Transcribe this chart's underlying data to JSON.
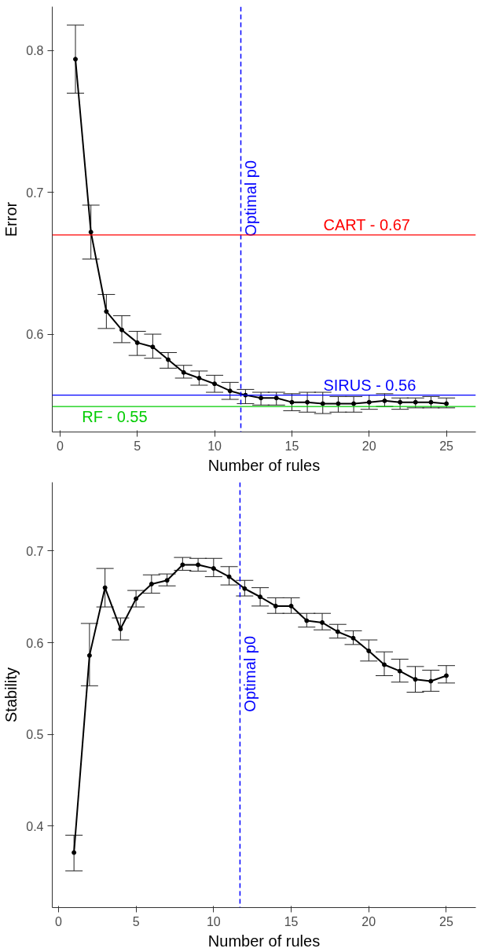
{
  "chart_data": [
    {
      "type": "line",
      "xlabel": "Number of rules",
      "ylabel": "Error",
      "x": [
        1,
        2,
        3,
        4,
        5,
        6,
        7,
        8,
        9,
        10,
        11,
        12,
        13,
        14,
        15,
        16,
        17,
        18,
        19,
        20,
        21,
        22,
        23,
        24,
        25
      ],
      "series": [
        {
          "color": "#000000",
          "values": [
            0.794,
            0.672,
            0.616,
            0.603,
            0.594,
            0.591,
            0.582,
            0.573,
            0.569,
            0.565,
            0.56,
            0.557,
            0.555,
            0.555,
            0.552,
            0.552,
            0.551,
            0.551,
            0.551,
            0.552,
            0.553,
            0.552,
            0.552,
            0.552,
            0.551
          ],
          "errors": [
            [
              0.77,
              0.818
            ],
            [
              0.653,
              0.691
            ],
            [
              0.604,
              0.628
            ],
            [
              0.594,
              0.613
            ],
            [
              0.585,
              0.602
            ],
            [
              0.583,
              0.6
            ],
            [
              0.576,
              0.587
            ],
            [
              0.569,
              0.578
            ],
            [
              0.564,
              0.574
            ],
            [
              0.559,
              0.571
            ],
            [
              0.554,
              0.566
            ],
            [
              0.551,
              0.561
            ],
            [
              0.55,
              0.559
            ],
            [
              0.55,
              0.559
            ],
            [
              0.546,
              0.558
            ],
            [
              0.545,
              0.559
            ],
            [
              0.544,
              0.559
            ],
            [
              0.545,
              0.556
            ],
            [
              0.545,
              0.556
            ],
            [
              0.547,
              0.557
            ],
            [
              0.549,
              0.558
            ],
            [
              0.547,
              0.555
            ],
            [
              0.548,
              0.555
            ],
            [
              0.548,
              0.556
            ],
            [
              0.548,
              0.555
            ]
          ]
        }
      ],
      "xlim": [
        -0.5,
        26.9
      ],
      "ylim": [
        0.531,
        0.831
      ],
      "xticks": [
        0,
        5,
        10,
        15,
        20,
        25
      ],
      "yticks": [
        0.6,
        0.7,
        0.8
      ],
      "ref_lines": [
        {
          "axis": "x",
          "value": 11.7,
          "label": "Optimal p0",
          "color": "#0000ff",
          "line_style": "dashed"
        },
        {
          "axis": "y",
          "value": 0.67,
          "label": "CART - 0.67",
          "color": "#ff0000"
        },
        {
          "axis": "y",
          "value": 0.557,
          "label": "SIRUS - 0.56",
          "color": "#0000ff"
        },
        {
          "axis": "y",
          "value": 0.549,
          "label": "RF - 0.55",
          "color": "#00cc00"
        }
      ],
      "marker": "circle",
      "line_style": "solid",
      "grid": false
    },
    {
      "type": "line",
      "xlabel": "Number of rules",
      "ylabel": "Stability",
      "x": [
        1,
        2,
        3,
        4,
        5,
        6,
        7,
        8,
        9,
        10,
        11,
        12,
        13,
        14,
        15,
        16,
        17,
        18,
        19,
        20,
        21,
        22,
        23,
        24,
        25
      ],
      "series": [
        {
          "color": "#000000",
          "values": [
            0.371,
            0.586,
            0.66,
            0.615,
            0.648,
            0.664,
            0.668,
            0.685,
            0.685,
            0.681,
            0.672,
            0.659,
            0.65,
            0.64,
            0.64,
            0.624,
            0.622,
            0.612,
            0.605,
            0.591,
            0.576,
            0.569,
            0.56,
            0.558,
            0.564
          ],
          "errors": [
            [
              0.351,
              0.39
            ],
            [
              0.553,
              0.621
            ],
            [
              0.639,
              0.681
            ],
            [
              0.603,
              0.627
            ],
            [
              0.639,
              0.657
            ],
            [
              0.654,
              0.674
            ],
            [
              0.662,
              0.675
            ],
            [
              0.679,
              0.693
            ],
            [
              0.678,
              0.692
            ],
            [
              0.672,
              0.692
            ],
            [
              0.663,
              0.683
            ],
            [
              0.651,
              0.668
            ],
            [
              0.64,
              0.66
            ],
            [
              0.632,
              0.649
            ],
            [
              0.632,
              0.649
            ],
            [
              0.617,
              0.632
            ],
            [
              0.614,
              0.632
            ],
            [
              0.605,
              0.62
            ],
            [
              0.598,
              0.613
            ],
            [
              0.58,
              0.603
            ],
            [
              0.564,
              0.59
            ],
            [
              0.557,
              0.582
            ],
            [
              0.546,
              0.574
            ],
            [
              0.547,
              0.57
            ],
            [
              0.556,
              0.575
            ]
          ]
        }
      ],
      "xlim": [
        -0.4,
        26.9
      ],
      "ylim": [
        0.311,
        0.775
      ],
      "xticks": [
        0,
        5,
        10,
        15,
        20,
        25
      ],
      "yticks": [
        0.4,
        0.5,
        0.6,
        0.7
      ],
      "ref_lines": [
        {
          "axis": "x",
          "value": 11.7,
          "label": "Optimal p0",
          "color": "#0000ff",
          "line_style": "dashed"
        }
      ],
      "marker": "circle",
      "line_style": "solid",
      "grid": false
    }
  ]
}
